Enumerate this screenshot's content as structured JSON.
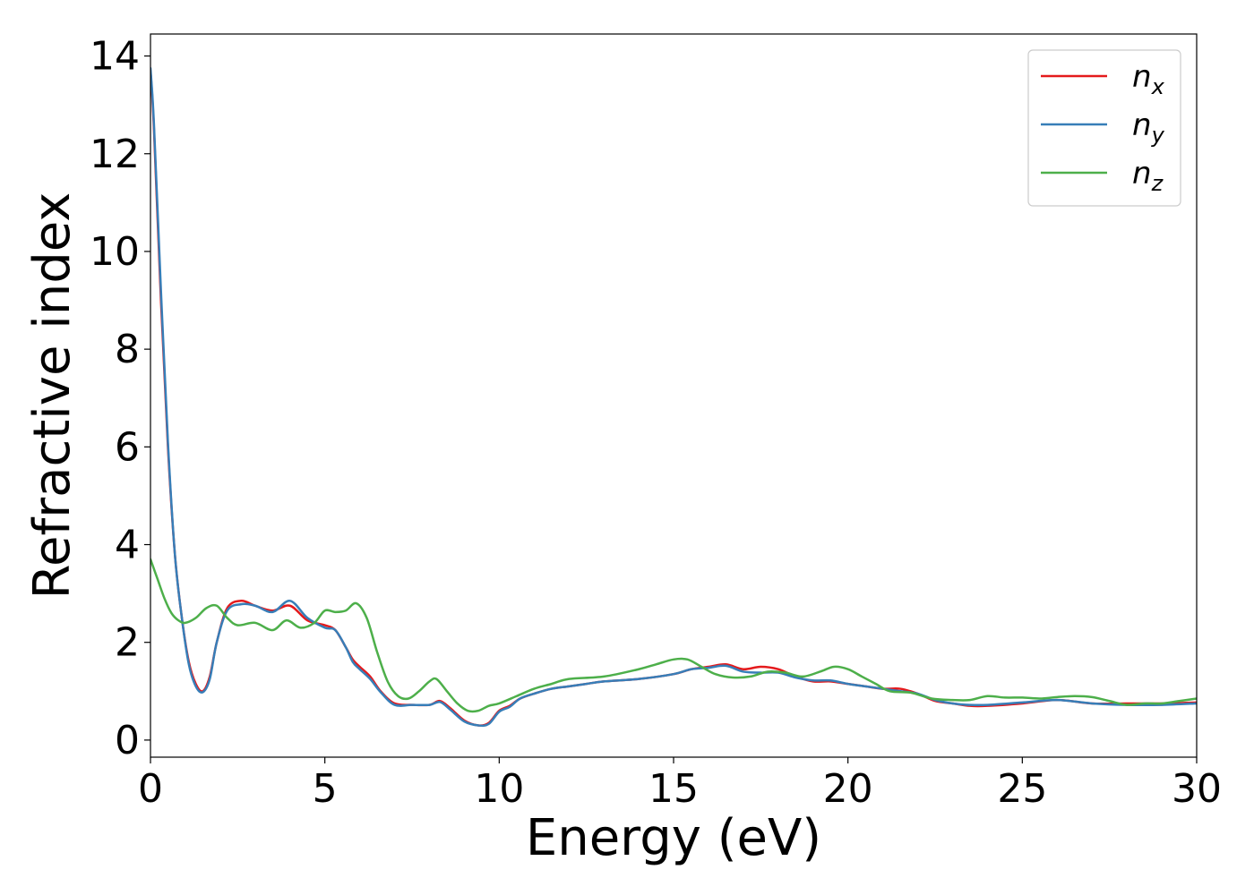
{
  "chart_data": {
    "type": "line",
    "xlabel": "Energy (eV)",
    "ylabel": "Refractive index",
    "xlim": [
      0,
      30
    ],
    "ylim": [
      -0.35,
      14.45
    ],
    "xticks": [
      0,
      5,
      10,
      15,
      20,
      25,
      30
    ],
    "xtick_labels": [
      "0",
      "5",
      "10",
      "15",
      "20",
      "25",
      "30"
    ],
    "yticks": [
      0,
      2,
      4,
      6,
      8,
      10,
      12,
      14
    ],
    "ytick_labels": [
      "0",
      "2",
      "4",
      "6",
      "8",
      "10",
      "12",
      "14"
    ],
    "grid": false,
    "legend_position": "top-right",
    "series": [
      {
        "name": "n_x",
        "legend_base": "n",
        "legend_sub": "x",
        "color": "#e41a1c",
        "x": [
          0,
          0.1,
          0.3,
          0.5,
          0.7,
          0.9,
          1.1,
          1.3,
          1.5,
          1.7,
          1.9,
          2.2,
          2.6,
          3.0,
          3.5,
          4.0,
          4.5,
          5.0,
          5.3,
          5.6,
          5.8,
          6.0,
          6.3,
          6.6,
          7.0,
          7.5,
          8.0,
          8.3,
          8.6,
          9.0,
          9.4,
          9.7,
          10.0,
          10.3,
          10.6,
          11.0,
          11.5,
          12.0,
          12.5,
          13.0,
          14.0,
          15.0,
          15.5,
          16.0,
          16.5,
          17.0,
          17.5,
          18.0,
          18.5,
          19.0,
          19.5,
          20.0,
          20.5,
          21.0,
          21.5,
          22.0,
          22.5,
          23.0,
          23.5,
          24.0,
          25.0,
          26.0,
          27.0,
          28.0,
          29.0,
          30.0
        ],
        "y": [
          13.7,
          12.5,
          9.0,
          6.0,
          3.8,
          2.5,
          1.6,
          1.15,
          1.0,
          1.3,
          2.0,
          2.7,
          2.85,
          2.75,
          2.65,
          2.75,
          2.45,
          2.35,
          2.25,
          1.9,
          1.65,
          1.5,
          1.3,
          1.0,
          0.75,
          0.72,
          0.72,
          0.8,
          0.65,
          0.4,
          0.3,
          0.35,
          0.6,
          0.7,
          0.85,
          0.95,
          1.05,
          1.1,
          1.15,
          1.2,
          1.25,
          1.35,
          1.45,
          1.5,
          1.55,
          1.45,
          1.5,
          1.45,
          1.3,
          1.2,
          1.2,
          1.15,
          1.1,
          1.05,
          1.05,
          0.95,
          0.8,
          0.75,
          0.7,
          0.7,
          0.75,
          0.82,
          0.75,
          0.75,
          0.75,
          0.77
        ]
      },
      {
        "name": "n_y",
        "legend_base": "n",
        "legend_sub": "y",
        "color": "#377eb8",
        "x": [
          0,
          0.1,
          0.3,
          0.5,
          0.7,
          0.9,
          1.1,
          1.3,
          1.5,
          1.7,
          1.9,
          2.2,
          2.6,
          3.0,
          3.5,
          4.0,
          4.5,
          5.0,
          5.3,
          5.6,
          5.8,
          6.0,
          6.3,
          6.6,
          7.0,
          7.5,
          8.0,
          8.3,
          8.6,
          9.0,
          9.4,
          9.7,
          10.0,
          10.3,
          10.6,
          11.0,
          11.5,
          12.0,
          12.5,
          13.0,
          14.0,
          15.0,
          15.5,
          16.0,
          16.5,
          17.0,
          17.5,
          18.0,
          18.5,
          19.0,
          19.5,
          20.0,
          20.5,
          21.0,
          21.5,
          22.0,
          22.5,
          23.0,
          23.5,
          24.0,
          25.0,
          26.0,
          27.0,
          28.0,
          29.0,
          30.0
        ],
        "y": [
          13.75,
          12.6,
          9.2,
          6.1,
          3.8,
          2.5,
          1.55,
          1.1,
          0.98,
          1.25,
          2.0,
          2.65,
          2.78,
          2.75,
          2.62,
          2.85,
          2.5,
          2.3,
          2.25,
          1.9,
          1.6,
          1.45,
          1.25,
          0.98,
          0.72,
          0.72,
          0.72,
          0.78,
          0.62,
          0.38,
          0.3,
          0.33,
          0.58,
          0.68,
          0.85,
          0.95,
          1.05,
          1.1,
          1.15,
          1.2,
          1.25,
          1.35,
          1.45,
          1.48,
          1.52,
          1.4,
          1.38,
          1.38,
          1.28,
          1.22,
          1.22,
          1.15,
          1.1,
          1.05,
          1.0,
          0.95,
          0.82,
          0.75,
          0.72,
          0.72,
          0.77,
          0.82,
          0.75,
          0.72,
          0.72,
          0.75
        ]
      },
      {
        "name": "n_z",
        "legend_base": "n",
        "legend_sub": "z",
        "color": "#4daf4a",
        "x": [
          0,
          0.2,
          0.4,
          0.6,
          0.8,
          1.0,
          1.3,
          1.6,
          1.9,
          2.2,
          2.5,
          3.0,
          3.5,
          3.9,
          4.3,
          4.7,
          5.0,
          5.3,
          5.6,
          5.9,
          6.2,
          6.5,
          6.8,
          7.1,
          7.4,
          7.7,
          8.0,
          8.2,
          8.5,
          8.8,
          9.1,
          9.4,
          9.7,
          10.0,
          10.5,
          11.0,
          11.5,
          12.0,
          13.0,
          14.0,
          14.5,
          15.0,
          15.4,
          15.8,
          16.2,
          16.7,
          17.2,
          17.7,
          18.2,
          18.7,
          19.2,
          19.6,
          20.0,
          20.4,
          20.8,
          21.2,
          21.8,
          22.4,
          23.0,
          23.5,
          24.0,
          24.5,
          25.0,
          25.5,
          26.0,
          26.5,
          27.0,
          27.5,
          28.0,
          28.5,
          29.0,
          29.5,
          30.0
        ],
        "y": [
          3.7,
          3.3,
          2.9,
          2.6,
          2.45,
          2.4,
          2.5,
          2.7,
          2.75,
          2.5,
          2.35,
          2.4,
          2.25,
          2.45,
          2.3,
          2.4,
          2.65,
          2.62,
          2.65,
          2.8,
          2.5,
          1.8,
          1.2,
          0.9,
          0.85,
          1.0,
          1.2,
          1.25,
          1.0,
          0.75,
          0.6,
          0.6,
          0.7,
          0.75,
          0.9,
          1.05,
          1.15,
          1.25,
          1.3,
          1.45,
          1.55,
          1.65,
          1.65,
          1.5,
          1.35,
          1.28,
          1.3,
          1.4,
          1.38,
          1.3,
          1.4,
          1.5,
          1.45,
          1.3,
          1.15,
          1.0,
          0.97,
          0.85,
          0.82,
          0.82,
          0.9,
          0.87,
          0.87,
          0.85,
          0.88,
          0.9,
          0.88,
          0.8,
          0.72,
          0.75,
          0.75,
          0.8,
          0.85
        ]
      }
    ]
  }
}
